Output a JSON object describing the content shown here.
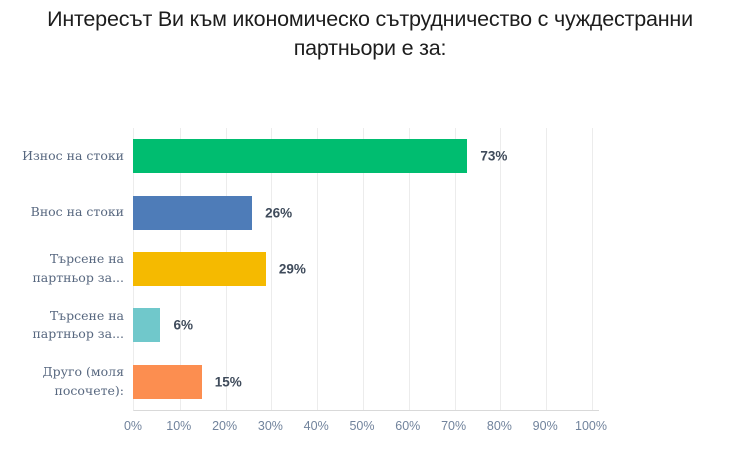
{
  "title": {
    "line1": "Интересът Ви към икономическо сътрудничество с чуждестранни",
    "line2": "партньори е за:"
  },
  "colors": {
    "title": "#1d1d1d",
    "category_label": "#57677f",
    "value_label": "#3f4b5b",
    "tick_label": "#71839c",
    "gridline": "#ececec",
    "axis_line": "#d9d9d9",
    "background": "#ffffff"
  },
  "chart_data": {
    "type": "bar",
    "orientation": "horizontal",
    "title": "Интересът Ви към икономическо сътрудничество с чуждестранни партньори е за:",
    "categories": [
      "Износ на стоки",
      "Внос на стоки",
      "Търсене на\nпартньор за...",
      "Търсене на\nпартньор за...",
      "Друго (моля\nпосочете):"
    ],
    "values": [
      73,
      26,
      29,
      6,
      15
    ],
    "value_labels": [
      "73%",
      "26%",
      "29%",
      "6%",
      "15%"
    ],
    "bar_colors": [
      "#00bd70",
      "#4e7cb8",
      "#f5ba00",
      "#70c8cb",
      "#fc8e50"
    ],
    "xlabel": "",
    "ylabel": "",
    "xlim": [
      0,
      100
    ],
    "x_axis": {
      "tick_values": [
        0,
        10,
        20,
        30,
        40,
        50,
        60,
        70,
        80,
        90,
        100
      ],
      "tick_labels": [
        "0%",
        "10%",
        "20%",
        "30%",
        "40%",
        "50%",
        "60%",
        "70%",
        "80%",
        "90%",
        "100%"
      ]
    },
    "grid": true,
    "legend": false
  }
}
